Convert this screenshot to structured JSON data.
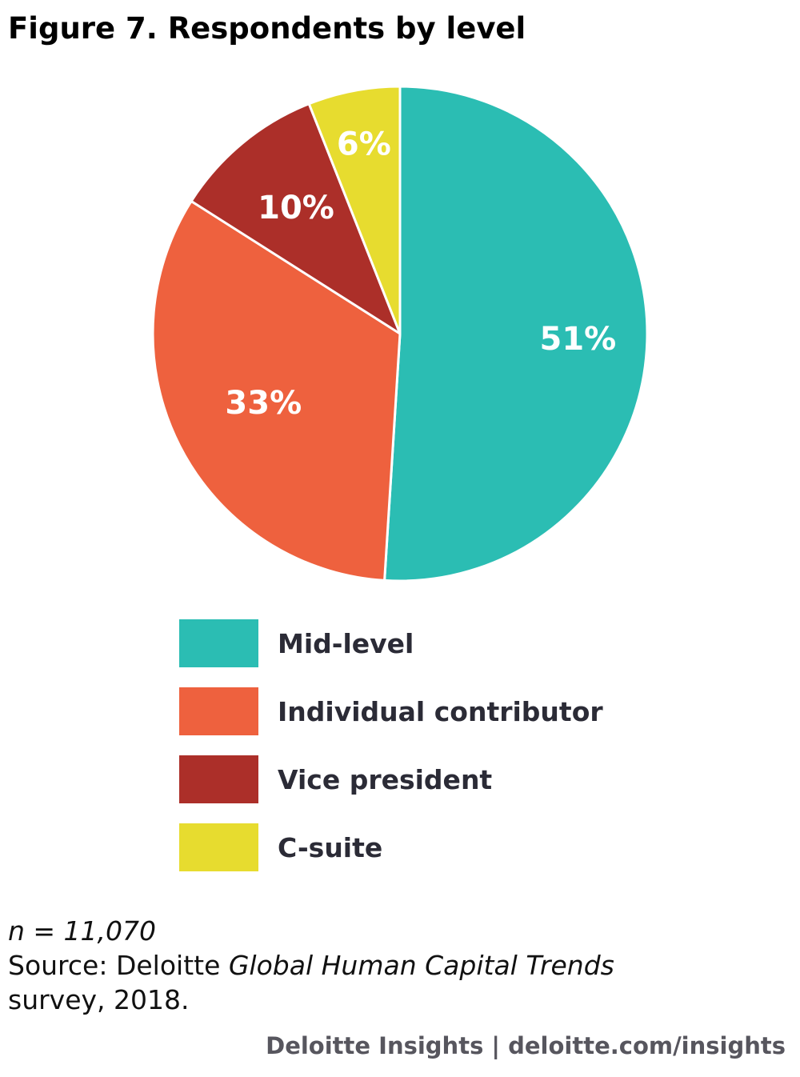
{
  "title": "Figure 7. Respondents by level",
  "chart_data": {
    "type": "pie",
    "slices": [
      {
        "label": "Mid-level",
        "value": 51,
        "display": "51%",
        "color": "#2bbdb3"
      },
      {
        "label": "Individual contributor",
        "value": 33,
        "display": "33%",
        "color": "#ee613e"
      },
      {
        "label": "Vice president",
        "value": 10,
        "display": "10%",
        "color": "#ac2f29"
      },
      {
        "label": "C-suite",
        "value": 6,
        "display": "6%",
        "color": "#e7dc2f"
      }
    ],
    "legend_placement": "bottom"
  },
  "notes": {
    "n_label": "n = 11,070",
    "source_prefix": "Source: Deloitte ",
    "source_italic": "Global Human Capital Trends",
    "source_suffix": "survey, 2018."
  },
  "footer": "Deloitte Insights | deloitte.com/insights"
}
